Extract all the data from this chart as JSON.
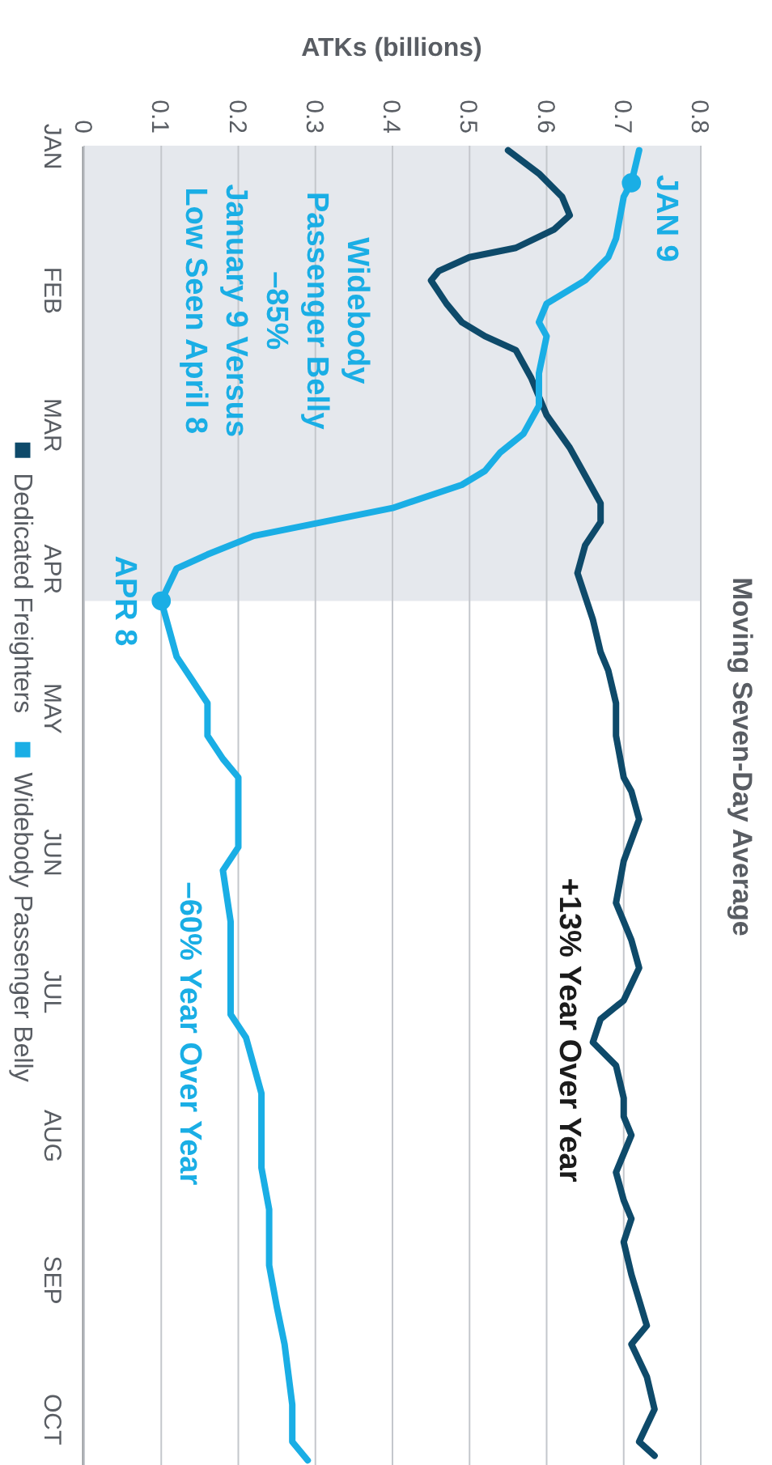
{
  "chart_data": {
    "type": "line",
    "orientation": "horizontal",
    "title": "Moving Seven-Day Average",
    "xlabel": "ATKs (billions)",
    "xlim": [
      0,
      0.8
    ],
    "xticks": [
      0,
      0.1,
      0.2,
      0.3,
      0.4,
      0.5,
      0.6,
      0.7,
      0.8
    ],
    "ylim": [
      "--10-11",
      "--01-01"
    ],
    "yticks": [
      {
        "value": "--01-01",
        "label": "JAN"
      },
      {
        "value": "--02-01",
        "label": "FEB"
      },
      {
        "value": "--03-01",
        "label": "MAR"
      },
      {
        "value": "--04-01",
        "label": "APR"
      },
      {
        "value": "--05-01",
        "label": "MAY"
      },
      {
        "value": "--06-01",
        "label": "JUN"
      },
      {
        "value": "--07-01",
        "label": "JUL"
      },
      {
        "value": "--08-01",
        "label": "AUG"
      },
      {
        "value": "--09-01",
        "label": "SEP"
      },
      {
        "value": "--10-01",
        "label": "OCT"
      }
    ],
    "grid": "x",
    "legend": "left",
    "line_style": "solid",
    "bands": [
      {
        "axis": "y",
        "from": "--01-01",
        "to": "--04-08",
        "color": "#e5e8ed"
      }
    ],
    "series": [
      {
        "name": "Dedicated Freighters",
        "color": "#0e4a6a",
        "x": [
          "--01-02",
          "--01-07",
          "--01-12",
          "--01-16",
          "--01-19",
          "--01-23",
          "--01-25",
          "--01-28",
          "--01-30",
          "--02-04",
          "--02-08",
          "--02-11",
          "--02-14",
          "--02-20",
          "--02-28",
          "--03-06",
          "--03-12",
          "--03-18",
          "--03-22",
          "--03-27",
          "--04-02",
          "--04-07",
          "--04-12",
          "--04-19",
          "--04-23",
          "--04-30",
          "--05-07",
          "--05-16",
          "--05-19",
          "--05-25",
          "--06-03",
          "--06-12",
          "--06-20",
          "--06-26",
          "--07-03",
          "--07-07",
          "--07-12",
          "--07-17",
          "--07-24",
          "--07-28",
          "--08-01",
          "--08-09",
          "--08-15",
          "--08-19",
          "--08-24",
          "--08-31",
          "--09-11",
          "--09-15",
          "--09-22",
          "--09-29",
          "--10-06",
          "--10-09"
        ],
        "values": [
          0.55,
          0.59,
          0.62,
          0.63,
          0.61,
          0.56,
          0.5,
          0.46,
          0.45,
          0.47,
          0.49,
          0.52,
          0.56,
          0.58,
          0.6,
          0.63,
          0.65,
          0.67,
          0.67,
          0.65,
          0.64,
          0.65,
          0.66,
          0.67,
          0.68,
          0.69,
          0.69,
          0.7,
          0.71,
          0.72,
          0.7,
          0.69,
          0.71,
          0.72,
          0.7,
          0.67,
          0.66,
          0.69,
          0.7,
          0.7,
          0.71,
          0.69,
          0.7,
          0.71,
          0.7,
          0.71,
          0.73,
          0.71,
          0.73,
          0.74,
          0.72,
          0.74
        ]
      },
      {
        "name": "Widebody Passenger Belly",
        "color": "#1aaee5",
        "x": [
          "--01-02",
          "--01-09",
          "--01-12",
          "--01-21",
          "--01-25",
          "--01-30",
          "--02-01",
          "--02-04",
          "--02-08",
          "--02-11",
          "--02-19",
          "--02-26",
          "--03-03",
          "--03-07",
          "--03-11",
          "--03-14",
          "--03-19",
          "--03-22",
          "--03-25",
          "--03-29",
          "--04-01",
          "--04-08",
          "--04-14",
          "--04-20",
          "--04-25",
          "--04-30",
          "--05-07",
          "--05-12",
          "--05-16",
          "--05-19",
          "--05-25",
          "--05-31",
          "--06-05",
          "--06-16",
          "--07-01",
          "--07-06",
          "--07-11",
          "--07-23",
          "--07-28",
          "--08-08",
          "--08-17",
          "--08-29",
          "--09-07",
          "--09-15",
          "--09-28",
          "--10-06",
          "--10-10"
        ],
        "values": [
          0.72,
          0.71,
          0.7,
          0.69,
          0.68,
          0.65,
          0.63,
          0.6,
          0.59,
          0.6,
          0.59,
          0.59,
          0.57,
          0.54,
          0.52,
          0.49,
          0.4,
          0.31,
          0.22,
          0.16,
          0.12,
          0.1,
          0.11,
          0.12,
          0.14,
          0.16,
          0.16,
          0.18,
          0.2,
          0.2,
          0.2,
          0.2,
          0.18,
          0.19,
          0.19,
          0.19,
          0.21,
          0.23,
          0.23,
          0.23,
          0.24,
          0.24,
          0.25,
          0.26,
          0.27,
          0.27,
          0.29
        ]
      }
    ],
    "annotations": [
      "Widebody\nPassenger Belly\n–85%\nJanuary 9 Versus\nLow Seen April 8",
      {
        "text": "JAN 9",
        "x": 0.71,
        "y": "--01-09"
      },
      {
        "text": "APR 8",
        "x": 0.1,
        "y": "--04-08"
      },
      "+13% Year Over Year",
      "–60% Year Over Year"
    ]
  }
}
